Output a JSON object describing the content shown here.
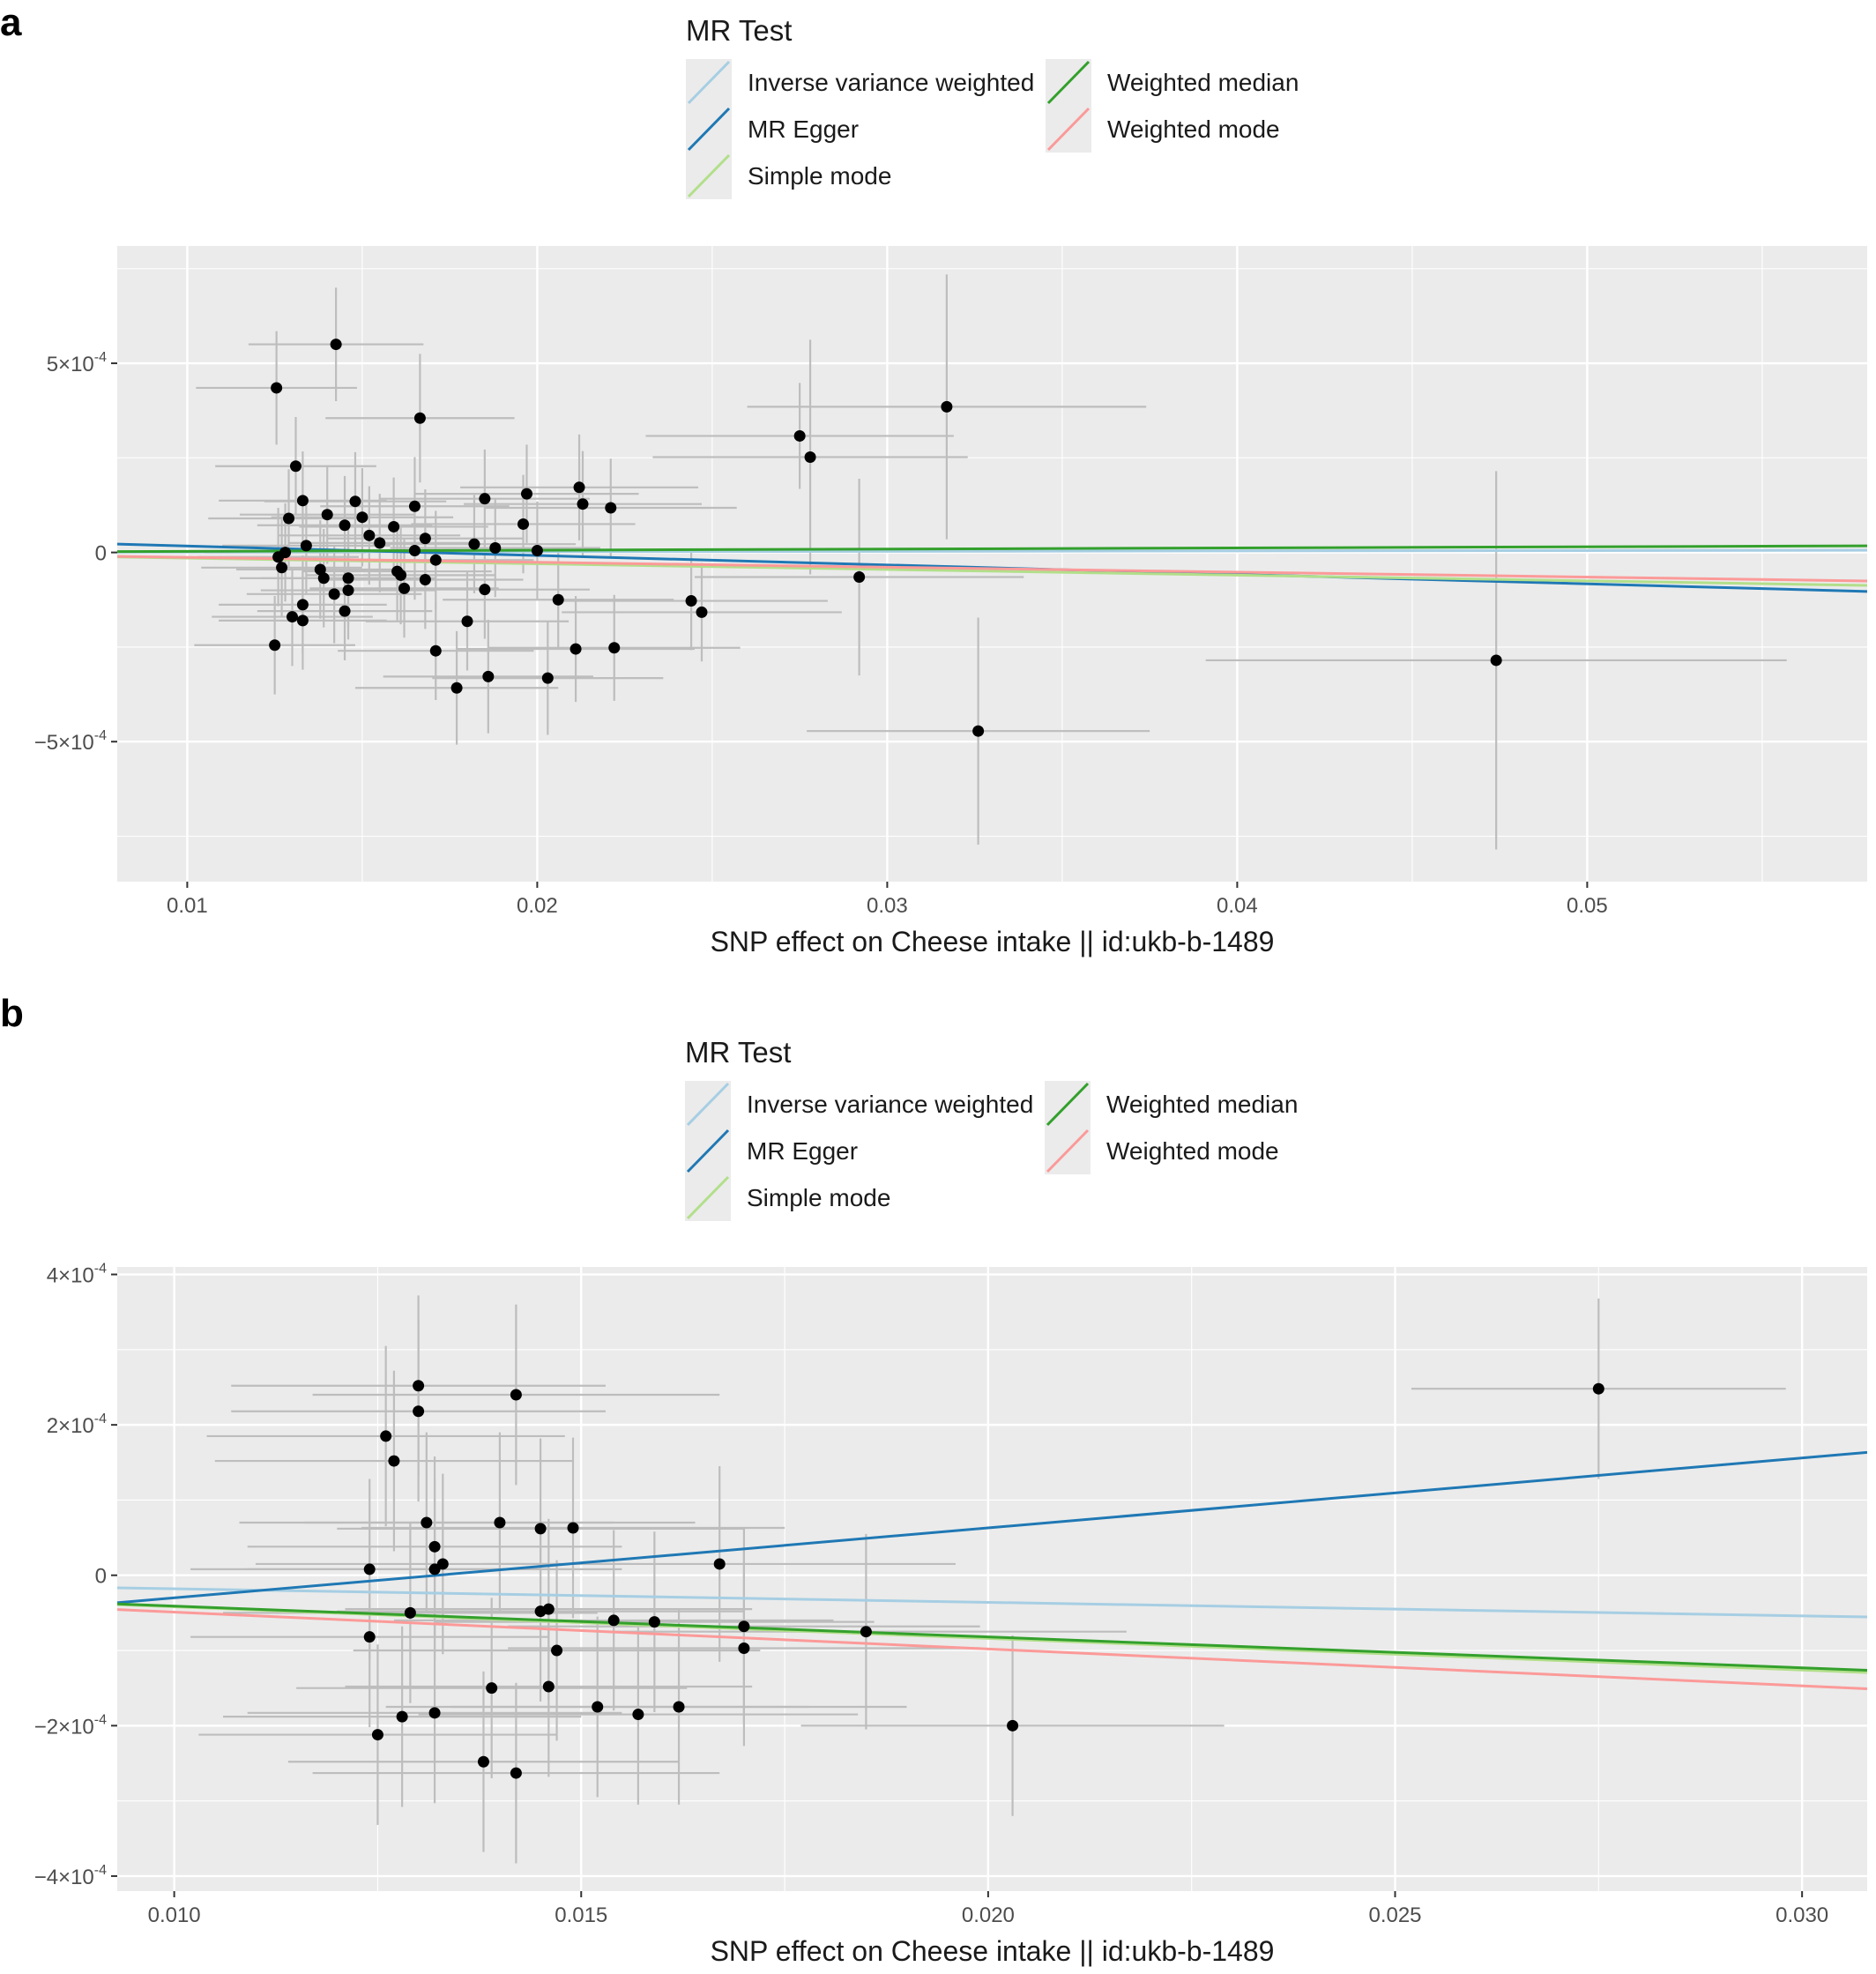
{
  "figure": {
    "legend": {
      "title": "MR Test",
      "entries": [
        {
          "label": "Inverse variance weighted",
          "color": "#a6cee3"
        },
        {
          "label": "MR Egger",
          "color": "#1f78b4"
        },
        {
          "label": "Simple mode",
          "color": "#b2df8a"
        },
        {
          "label": "Weighted median",
          "color": "#33a02c"
        },
        {
          "label": "Weighted mode",
          "color": "#fb9a99"
        }
      ]
    },
    "colors": {
      "panel_background": "#ebebeb",
      "grid": "#ffffff",
      "points": "#000000",
      "error_bars": "#bdbdbd"
    }
  },
  "chart_data": [
    {
      "panel_label": "a",
      "type": "scatter",
      "xlabel": "SNP effect on Cheese intake || id:ukb-b-1489",
      "ylabel": "",
      "xlim": [
        0.008,
        0.058
      ],
      "ylim": [
        -0.00087,
        0.00081
      ],
      "x_ticks": [
        {
          "value": 0.01,
          "label": "0.01"
        },
        {
          "value": 0.02,
          "label": "0.02"
        },
        {
          "value": 0.03,
          "label": "0.03"
        },
        {
          "value": 0.04,
          "label": "0.04"
        },
        {
          "value": 0.05,
          "label": "0.05"
        }
      ],
      "y_ticks": [
        {
          "value": 0.0005,
          "label": "5×10",
          "exp": "-4"
        },
        {
          "value": 0,
          "label": "0",
          "exp": ""
        },
        {
          "value": -0.0005,
          "label": "−5×10",
          "exp": "-4"
        }
      ],
      "points": [
        {
          "x": 0.01425,
          "y": 0.00055,
          "x_err": 0.0025,
          "y_err": 0.00015
        },
        {
          "x": 0.01255,
          "y": 0.000435,
          "x_err": 0.0023,
          "y_err": 0.00015
        },
        {
          "x": 0.01665,
          "y": 0.000355,
          "x_err": 0.0027,
          "y_err": 0.00017
        },
        {
          "x": 0.0131,
          "y": 0.000228,
          "x_err": 0.0023,
          "y_err": 0.00013
        },
        {
          "x": 0.0133,
          "y": 0.000137,
          "x_err": 0.0024,
          "y_err": 0.00013
        },
        {
          "x": 0.0129,
          "y": 9e-05,
          "x_err": 0.0023,
          "y_err": 0.00013
        },
        {
          "x": 0.014,
          "y": 0.0001,
          "x_err": 0.0025,
          "y_err": 0.00013
        },
        {
          "x": 0.0148,
          "y": 0.000135,
          "x_err": 0.0026,
          "y_err": 0.00013
        },
        {
          "x": 0.015,
          "y": 9.3e-05,
          "x_err": 0.0026,
          "y_err": 0.00013
        },
        {
          "x": 0.0145,
          "y": 7.2e-05,
          "x_err": 0.0025,
          "y_err": 0.00013
        },
        {
          "x": 0.0152,
          "y": 4.5e-05,
          "x_err": 0.0026,
          "y_err": 0.00013
        },
        {
          "x": 0.0155,
          "y": 2.5e-05,
          "x_err": 0.0026,
          "y_err": 0.00013
        },
        {
          "x": 0.0159,
          "y": 6.8e-05,
          "x_err": 0.0027,
          "y_err": 0.00013
        },
        {
          "x": 0.0134,
          "y": 1.8e-05,
          "x_err": 0.0024,
          "y_err": 0.00013
        },
        {
          "x": 0.0128,
          "y": 0.0,
          "x_err": 0.0023,
          "y_err": 0.00013
        },
        {
          "x": 0.0126,
          "y": -1.2e-05,
          "x_err": 0.0023,
          "y_err": 0.00013
        },
        {
          "x": 0.0127,
          "y": -4e-05,
          "x_err": 0.0023,
          "y_err": 0.00013
        },
        {
          "x": 0.0138,
          "y": -4.5e-05,
          "x_err": 0.0024,
          "y_err": 0.00013
        },
        {
          "x": 0.0139,
          "y": -6.8e-05,
          "x_err": 0.0024,
          "y_err": 0.00013
        },
        {
          "x": 0.0146,
          "y": -6.8e-05,
          "x_err": 0.0025,
          "y_err": 0.00013
        },
        {
          "x": 0.0146,
          "y": -0.0001,
          "x_err": 0.0025,
          "y_err": 0.00013
        },
        {
          "x": 0.0142,
          "y": -0.00011,
          "x_err": 0.0025,
          "y_err": 0.00013
        },
        {
          "x": 0.016,
          "y": -5e-05,
          "x_err": 0.0027,
          "y_err": 0.00013
        },
        {
          "x": 0.0161,
          "y": -6e-05,
          "x_err": 0.0027,
          "y_err": 0.00013
        },
        {
          "x": 0.0162,
          "y": -9.5e-05,
          "x_err": 0.0027,
          "y_err": 0.00013
        },
        {
          "x": 0.013,
          "y": -0.00017,
          "x_err": 0.0023,
          "y_err": 0.00013
        },
        {
          "x": 0.0133,
          "y": -0.000138,
          "x_err": 0.0024,
          "y_err": 0.00013
        },
        {
          "x": 0.0133,
          "y": -0.00018,
          "x_err": 0.0024,
          "y_err": 0.00013
        },
        {
          "x": 0.0145,
          "y": -0.000155,
          "x_err": 0.0025,
          "y_err": 0.00013
        },
        {
          "x": 0.0125,
          "y": -0.000245,
          "x_err": 0.0023,
          "y_err": 0.00013
        },
        {
          "x": 0.0165,
          "y": 0.000122,
          "x_err": 0.0027,
          "y_err": 0.00013
        },
        {
          "x": 0.0168,
          "y": 3.7e-05,
          "x_err": 0.0028,
          "y_err": 0.00013
        },
        {
          "x": 0.0165,
          "y": 5e-06,
          "x_err": 0.0027,
          "y_err": 0.00013
        },
        {
          "x": 0.0171,
          "y": -2e-05,
          "x_err": 0.0028,
          "y_err": 0.00013
        },
        {
          "x": 0.0168,
          "y": -7.2e-05,
          "x_err": 0.0028,
          "y_err": 0.00013
        },
        {
          "x": 0.0171,
          "y": -0.00026,
          "x_err": 0.0028,
          "y_err": 0.00013
        },
        {
          "x": 0.0185,
          "y": 0.000142,
          "x_err": 0.003,
          "y_err": 0.00013
        },
        {
          "x": 0.0182,
          "y": 2.2e-05,
          "x_err": 0.0029,
          "y_err": 0.00013
        },
        {
          "x": 0.0188,
          "y": 1.2e-05,
          "x_err": 0.003,
          "y_err": 0.00013
        },
        {
          "x": 0.0185,
          "y": -9.8e-05,
          "x_err": 0.003,
          "y_err": 0.00013
        },
        {
          "x": 0.018,
          "y": -0.000182,
          "x_err": 0.0029,
          "y_err": 0.00013
        },
        {
          "x": 0.0177,
          "y": -0.000358,
          "x_err": 0.0029,
          "y_err": 0.00015
        },
        {
          "x": 0.0186,
          "y": -0.000328,
          "x_err": 0.003,
          "y_err": 0.00015
        },
        {
          "x": 0.0197,
          "y": 0.000155,
          "x_err": 0.0032,
          "y_err": 0.00013
        },
        {
          "x": 0.0196,
          "y": 7.5e-05,
          "x_err": 0.0032,
          "y_err": 0.00013
        },
        {
          "x": 0.02,
          "y": 5e-06,
          "x_err": 0.0032,
          "y_err": 0.00013
        },
        {
          "x": 0.0206,
          "y": -0.000125,
          "x_err": 0.0033,
          "y_err": 0.00013
        },
        {
          "x": 0.0203,
          "y": -0.000332,
          "x_err": 0.0033,
          "y_err": 0.00015
        },
        {
          "x": 0.0212,
          "y": 0.000172,
          "x_err": 0.0034,
          "y_err": 0.00014
        },
        {
          "x": 0.0213,
          "y": 0.000128,
          "x_err": 0.0034,
          "y_err": 0.00014
        },
        {
          "x": 0.0221,
          "y": 0.000118,
          "x_err": 0.0036,
          "y_err": 0.00013
        },
        {
          "x": 0.0211,
          "y": -0.000255,
          "x_err": 0.0034,
          "y_err": 0.00014
        },
        {
          "x": 0.0222,
          "y": -0.000252,
          "x_err": 0.0036,
          "y_err": 0.00014
        },
        {
          "x": 0.0244,
          "y": -0.000128,
          "x_err": 0.0039,
          "y_err": 0.00013
        },
        {
          "x": 0.0247,
          "y": -0.000158,
          "x_err": 0.004,
          "y_err": 0.00013
        },
        {
          "x": 0.0275,
          "y": 0.000308,
          "x_err": 0.0044,
          "y_err": 0.00014
        },
        {
          "x": 0.0278,
          "y": 0.000252,
          "x_err": 0.0045,
          "y_err": 0.00031
        },
        {
          "x": 0.0292,
          "y": -6.5e-05,
          "x_err": 0.0047,
          "y_err": 0.00026
        },
        {
          "x": 0.0317,
          "y": 0.000385,
          "x_err": 0.0057,
          "y_err": 0.00035
        },
        {
          "x": 0.0326,
          "y": -0.000472,
          "x_err": 0.0049,
          "y_err": 0.0003
        },
        {
          "x": 0.0474,
          "y": -0.000285,
          "x_err": 0.0083,
          "y_err": 0.0005
        }
      ],
      "lines": [
        {
          "name": "Inverse variance weighted",
          "color": "#a6cee3",
          "slope": 0.0001,
          "intercept": 0.0
        },
        {
          "name": "MR Egger",
          "color": "#1f78b4",
          "slope": -0.0025,
          "intercept": 4.2e-05
        },
        {
          "name": "Simple mode",
          "color": "#b2df8a",
          "slope": -0.0015,
          "intercept": 0.0
        },
        {
          "name": "Weighted median",
          "color": "#33a02c",
          "slope": 0.0003,
          "intercept": 0.0
        },
        {
          "name": "Weighted mode",
          "color": "#fb9a99",
          "slope": -0.0013,
          "intercept": 0.0
        }
      ]
    },
    {
      "panel_label": "b",
      "type": "scatter",
      "xlabel": "SNP effect on Cheese intake || id:ukb-b-1489",
      "ylabel": "",
      "xlim": [
        0.0093,
        0.0308
      ],
      "ylim": [
        -0.00042,
        0.00041
      ],
      "x_ticks": [
        {
          "value": 0.01,
          "label": "0.010"
        },
        {
          "value": 0.015,
          "label": "0.015"
        },
        {
          "value": 0.02,
          "label": "0.020"
        },
        {
          "value": 0.025,
          "label": "0.025"
        },
        {
          "value": 0.03,
          "label": "0.030"
        }
      ],
      "y_ticks": [
        {
          "value": 0.0004,
          "label": "4×10",
          "exp": "-4"
        },
        {
          "value": 0.0002,
          "label": "2×10",
          "exp": "-4"
        },
        {
          "value": 0,
          "label": "0",
          "exp": ""
        },
        {
          "value": -0.0002,
          "label": "−2×10",
          "exp": "-4"
        },
        {
          "value": -0.0004,
          "label": "−4×10",
          "exp": "-4"
        }
      ],
      "points": [
        {
          "x": 0.013,
          "y": 0.000252,
          "x_err": 0.0023,
          "y_err": 0.00012
        },
        {
          "x": 0.013,
          "y": 0.000218,
          "x_err": 0.0023,
          "y_err": 0.00012
        },
        {
          "x": 0.0142,
          "y": 0.00024,
          "x_err": 0.0025,
          "y_err": 0.00012
        },
        {
          "x": 0.0126,
          "y": 0.000185,
          "x_err": 0.0022,
          "y_err": 0.00012
        },
        {
          "x": 0.0127,
          "y": 0.000152,
          "x_err": 0.0022,
          "y_err": 0.00012
        },
        {
          "x": 0.0131,
          "y": 7e-05,
          "x_err": 0.0023,
          "y_err": 0.00012
        },
        {
          "x": 0.014,
          "y": 7e-05,
          "x_err": 0.0024,
          "y_err": 0.00012
        },
        {
          "x": 0.0145,
          "y": 6.2e-05,
          "x_err": 0.0025,
          "y_err": 0.00012
        },
        {
          "x": 0.0149,
          "y": 6.3e-05,
          "x_err": 0.0026,
          "y_err": 0.00012
        },
        {
          "x": 0.0132,
          "y": 3.8e-05,
          "x_err": 0.0023,
          "y_err": 0.00012
        },
        {
          "x": 0.0133,
          "y": 1.5e-05,
          "x_err": 0.0023,
          "y_err": 0.00012
        },
        {
          "x": 0.0132,
          "y": 8e-06,
          "x_err": 0.0023,
          "y_err": 0.00012
        },
        {
          "x": 0.0124,
          "y": 8e-06,
          "x_err": 0.0022,
          "y_err": 0.00012
        },
        {
          "x": 0.0167,
          "y": 1.5e-05,
          "x_err": 0.0029,
          "y_err": 0.00013
        },
        {
          "x": 0.0129,
          "y": -5e-05,
          "x_err": 0.0023,
          "y_err": 0.00012
        },
        {
          "x": 0.0145,
          "y": -4.8e-05,
          "x_err": 0.0025,
          "y_err": 0.00012
        },
        {
          "x": 0.0146,
          "y": -4.5e-05,
          "x_err": 0.0025,
          "y_err": 0.00012
        },
        {
          "x": 0.0154,
          "y": -6e-05,
          "x_err": 0.0027,
          "y_err": 0.00012
        },
        {
          "x": 0.0159,
          "y": -6.2e-05,
          "x_err": 0.0027,
          "y_err": 0.00012
        },
        {
          "x": 0.017,
          "y": -6.8e-05,
          "x_err": 0.0029,
          "y_err": 0.00013
        },
        {
          "x": 0.0185,
          "y": -7.5e-05,
          "x_err": 0.0032,
          "y_err": 0.00013
        },
        {
          "x": 0.0124,
          "y": -8.2e-05,
          "x_err": 0.0022,
          "y_err": 0.00012
        },
        {
          "x": 0.0147,
          "y": -0.0001,
          "x_err": 0.0025,
          "y_err": 0.00012
        },
        {
          "x": 0.017,
          "y": -9.7e-05,
          "x_err": 0.0029,
          "y_err": 0.00013
        },
        {
          "x": 0.0139,
          "y": -0.00015,
          "x_err": 0.0024,
          "y_err": 0.00012
        },
        {
          "x": 0.0146,
          "y": -0.000148,
          "x_err": 0.0025,
          "y_err": 0.00012
        },
        {
          "x": 0.0152,
          "y": -0.000175,
          "x_err": 0.0026,
          "y_err": 0.00012
        },
        {
          "x": 0.0157,
          "y": -0.000185,
          "x_err": 0.0027,
          "y_err": 0.00012
        },
        {
          "x": 0.0162,
          "y": -0.000175,
          "x_err": 0.0028,
          "y_err": 0.00013
        },
        {
          "x": 0.0128,
          "y": -0.000188,
          "x_err": 0.0022,
          "y_err": 0.00012
        },
        {
          "x": 0.0132,
          "y": -0.000183,
          "x_err": 0.0023,
          "y_err": 0.00012
        },
        {
          "x": 0.0125,
          "y": -0.000212,
          "x_err": 0.0022,
          "y_err": 0.00012
        },
        {
          "x": 0.0203,
          "y": -0.0002,
          "x_err": 0.0026,
          "y_err": 0.00012
        },
        {
          "x": 0.0138,
          "y": -0.000248,
          "x_err": 0.0024,
          "y_err": 0.00012
        },
        {
          "x": 0.0142,
          "y": -0.000263,
          "x_err": 0.0025,
          "y_err": 0.00012
        },
        {
          "x": 0.0275,
          "y": 0.000248,
          "x_err": 0.0023,
          "y_err": 0.00012
        }
      ],
      "lines": [
        {
          "name": "Inverse variance weighted",
          "color": "#a6cee3",
          "slope": -0.0018,
          "intercept": 0.0
        },
        {
          "name": "MR Egger",
          "color": "#1f78b4",
          "slope": 0.0093,
          "intercept": -0.000123
        },
        {
          "name": "Simple mode",
          "color": "#b2df8a",
          "slope": -0.0042,
          "intercept": 0.0
        },
        {
          "name": "Weighted median",
          "color": "#33a02c",
          "slope": -0.0041,
          "intercept": 0.0
        },
        {
          "name": "Weighted mode",
          "color": "#fb9a99",
          "slope": -0.0049,
          "intercept": 0.0
        }
      ]
    }
  ]
}
